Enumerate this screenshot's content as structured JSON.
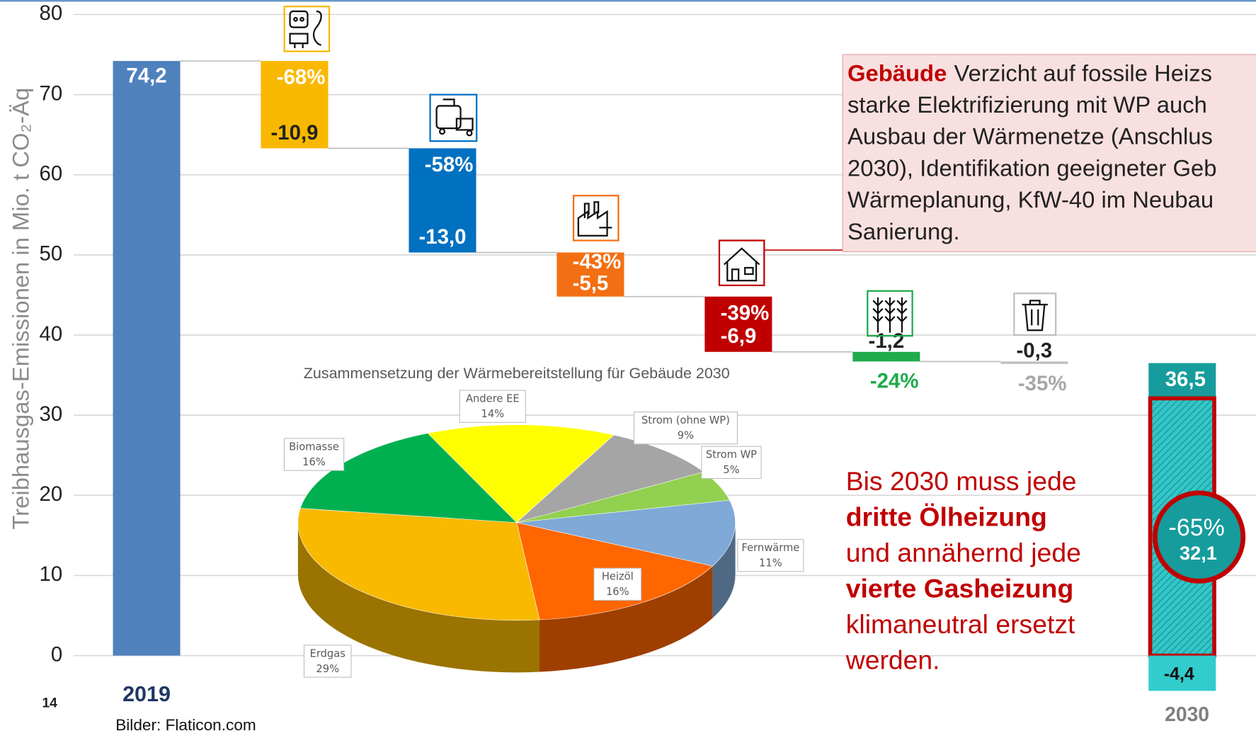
{
  "chart_data": [
    {
      "type": "waterfall",
      "y_label": "Treibhausgas-Emissionen in Mio. t CO₂-Äq",
      "categories": [
        "2019",
        null,
        null,
        null,
        null,
        null,
        null,
        "2030"
      ],
      "values": [
        74.2,
        -10.9,
        -13.0,
        -5.5,
        -6.9,
        -1.2,
        -0.3,
        36.5
      ],
      "value_labels": [
        "74,2",
        "-10,9",
        "-13,0",
        "-5,5",
        "-6,9",
        "-1,2",
        "-0,3",
        "36,5"
      ],
      "percent_labels": [
        null,
        "-68%",
        "-58%",
        "-43%",
        "-39%",
        "-24%",
        "-35%",
        "-65%"
      ],
      "colors": [
        "#4f81bd",
        "#f9b800",
        "#0070c0",
        "#f36f13",
        "#c00000",
        "#1faa4b",
        "#bfbfbf",
        "#169c9c"
      ],
      "parts_2030": [
        {
          "value": 32.1,
          "label": "32,1",
          "color": "#33c6c8"
        },
        {
          "value": -4.4,
          "label": "-4,4",
          "color": "#33cccc"
        }
      ],
      "ylim": [
        0,
        80
      ],
      "yticks": [
        0,
        10,
        20,
        30,
        40,
        50,
        60,
        70,
        80
      ],
      "grid": true
    },
    {
      "type": "pie",
      "title": "Zusammensetzung der Wärmebereitstellung für Gebäude 2030",
      "categories": [
        "Andere EE",
        "Strom (ohne WP)",
        "Strom WP",
        "Fernwärme",
        "Heizöl",
        "Erdgas",
        "Biomasse"
      ],
      "values": [
        14,
        9,
        5,
        11,
        16,
        29,
        16
      ],
      "value_labels": [
        "14%",
        "9%",
        "5%",
        "11%",
        "16%",
        "29%",
        "16%"
      ],
      "colors": [
        "#ffff00",
        "#a5a5a5",
        "#92d050",
        "#7fa9d6",
        "#ff6600",
        "#f8b900",
        "#00b050"
      ]
    }
  ],
  "building_box": {
    "heading": "Gebäude",
    "lines": [
      "Verzicht auf fossile Heizs",
      "starke Elektrifizierung mit WP auch",
      "Ausbau der Wärmenetze (Anschlus",
      "2030), Identifikation geeigneter Geb",
      "Wärmeplanung, KfW-40 im Neubau",
      "Sanierung."
    ]
  },
  "callout": {
    "lines": [
      {
        "text": "Bis 2030 muss jede",
        "bold": false
      },
      {
        "text": "dritte Ölheizung",
        "bold": true
      },
      {
        "text": "und annähernd jede",
        "bold": false
      },
      {
        "text": "vierte Gasheizung",
        "bold": true
      },
      {
        "text": "klimaneutral ersetzt",
        "bold": false
      },
      {
        "text": "werden.",
        "bold": false
      }
    ]
  },
  "page_number": "14",
  "footer": "Bilder: Flaticon.com"
}
